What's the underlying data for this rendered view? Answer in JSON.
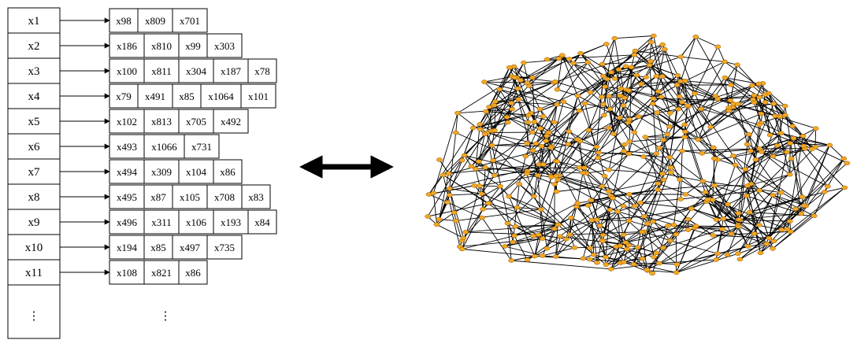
{
  "colors": {
    "node_fill": "#F5A623",
    "node_stroke": "#8A5A00",
    "edge": "#000000",
    "line": "#000000"
  },
  "adjacency_list": {
    "rows": [
      {
        "label": "x1",
        "neighbors": [
          "x98",
          "x809",
          "x701"
        ]
      },
      {
        "label": "x2",
        "neighbors": [
          "x186",
          "x810",
          "x99",
          "x303"
        ]
      },
      {
        "label": "x3",
        "neighbors": [
          "x100",
          "x811",
          "x304",
          "x187",
          "x78"
        ]
      },
      {
        "label": "x4",
        "neighbors": [
          "x79",
          "x491",
          "x85",
          "x1064",
          "x101"
        ]
      },
      {
        "label": "x5",
        "neighbors": [
          "x102",
          "x813",
          "x705",
          "x492"
        ]
      },
      {
        "label": "x6",
        "neighbors": [
          "x493",
          "x1066",
          "x731"
        ]
      },
      {
        "label": "x7",
        "neighbors": [
          "x494",
          "x309",
          "x104",
          "x86"
        ]
      },
      {
        "label": "x8",
        "neighbors": [
          "x495",
          "x87",
          "x105",
          "x708",
          "x83"
        ]
      },
      {
        "label": "x9",
        "neighbors": [
          "x496",
          "x311",
          "x106",
          "x193",
          "x84"
        ]
      },
      {
        "label": "x10",
        "neighbors": [
          "x194",
          "x85",
          "x497",
          "x735"
        ]
      },
      {
        "label": "x11",
        "neighbors": [
          "x108",
          "x821",
          "x86"
        ]
      }
    ],
    "continuation": "⋮"
  },
  "equivalence_arrow": "bidirectional-arrow-icon",
  "graph_icon": "network-graph-icon"
}
